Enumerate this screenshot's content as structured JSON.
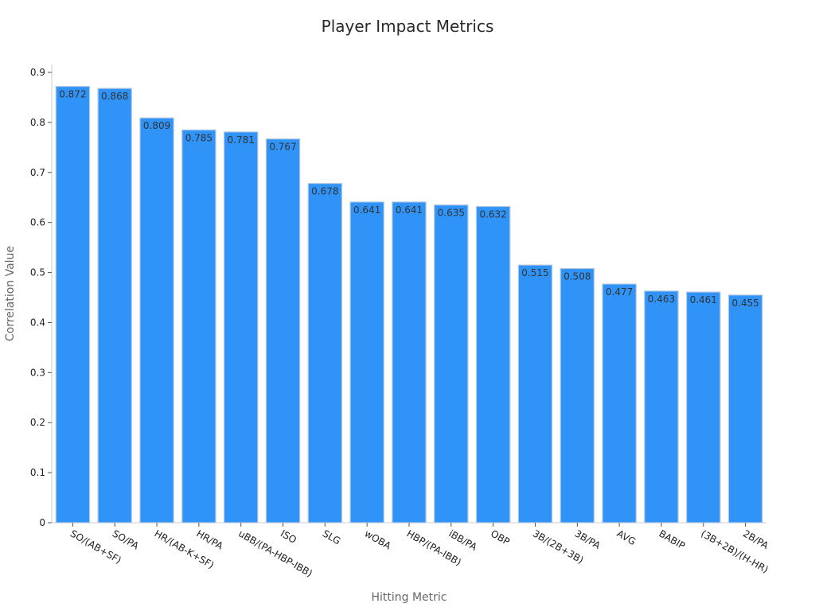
{
  "chart_data": {
    "type": "bar",
    "title": "Player Impact Metrics",
    "xlabel": "Hitting Metric",
    "ylabel": "Correlation Value",
    "categories": [
      "SO/(AB+SF)",
      "SO/PA",
      "HR/(AB-K+SF)",
      "HR/PA",
      "uBB/(PA-HBP-IBB)",
      "ISO",
      "SLG",
      "wOBA",
      "HBP/(PA-IBB)",
      "iBB/PA",
      "OBP",
      "3B/(2B+3B)",
      "3B/PA",
      "AVG",
      "BABIP",
      "(3B+2B)/(H-HR)",
      "2B/PA"
    ],
    "values": [
      0.872,
      0.868,
      0.809,
      0.785,
      0.781,
      0.767,
      0.678,
      0.641,
      0.641,
      0.635,
      0.632,
      0.515,
      0.508,
      0.477,
      0.463,
      0.461,
      0.455
    ],
    "data_labels": [
      "0.872",
      "0.868",
      "0.809",
      "0.785",
      "0.781",
      "0.767",
      "0.678",
      "0.641",
      "0.641",
      "0.635",
      "0.632",
      "0.515",
      "0.508",
      "0.477",
      "0.463",
      "0.461",
      "0.455"
    ],
    "ylim": [
      0,
      0.9
    ],
    "yticks": [
      0,
      0.1,
      0.2,
      0.3,
      0.4,
      0.5,
      0.6,
      0.7,
      0.8,
      0.9
    ],
    "ytick_labels": [
      "0",
      "0.1",
      "0.2",
      "0.3",
      "0.4",
      "0.5",
      "0.6",
      "0.7",
      "0.8",
      "0.9"
    ],
    "grid": false,
    "legend": "none",
    "bar_color": "#2f93f8",
    "bar_edge_color": "#b7c9e0"
  }
}
